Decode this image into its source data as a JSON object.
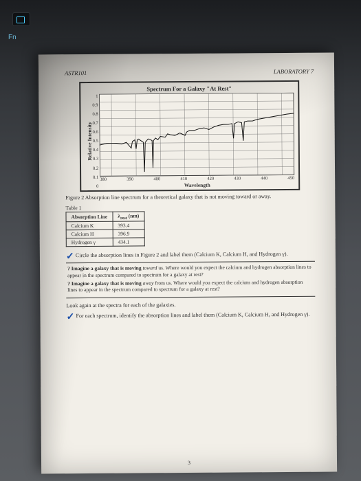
{
  "header": {
    "course": "ASTR101",
    "lab": "LABORATORY 7"
  },
  "chart": {
    "type": "line",
    "title": "Spectrum For a Galaxy \"At Rest\"",
    "xlabel": "Wavelength",
    "ylabel": "Relative Intensity",
    "xlim": [
      375,
      455
    ],
    "ylim": [
      0,
      1
    ],
    "xticks": [
      380,
      390,
      400,
      410,
      420,
      430,
      440,
      450
    ],
    "yticks": [
      0,
      0.1,
      0.2,
      0.3,
      0.4,
      0.5,
      0.6,
      0.7,
      0.8,
      0.9,
      1
    ],
    "grid_color": "#6f6f6f",
    "line_color": "#111111",
    "background_color": "#f2efe8",
    "line_width": 0.9,
    "series": [
      [
        375,
        0.38
      ],
      [
        378,
        0.4
      ],
      [
        380,
        0.4
      ],
      [
        382,
        0.4
      ],
      [
        384,
        0.39
      ],
      [
        386,
        0.41
      ],
      [
        388,
        0.34
      ],
      [
        388.5,
        0.42
      ],
      [
        389.5,
        0.44
      ],
      [
        390,
        0.33
      ],
      [
        390.5,
        0.44
      ],
      [
        391,
        0.45
      ],
      [
        393,
        0.41
      ],
      [
        393.4,
        0.05
      ],
      [
        393.8,
        0.41
      ],
      [
        395,
        0.45
      ],
      [
        396,
        0.44
      ],
      [
        396.6,
        0.43
      ],
      [
        396.9,
        0.1
      ],
      [
        397.2,
        0.43
      ],
      [
        398,
        0.46
      ],
      [
        399,
        0.44
      ],
      [
        400,
        0.48
      ],
      [
        402,
        0.47
      ],
      [
        403,
        0.51
      ],
      [
        404,
        0.5
      ],
      [
        406,
        0.49
      ],
      [
        408,
        0.52
      ],
      [
        409.5,
        0.5
      ],
      [
        410.2,
        0.49
      ],
      [
        410.8,
        0.53
      ],
      [
        412,
        0.55
      ],
      [
        414,
        0.55
      ],
      [
        416,
        0.57
      ],
      [
        418,
        0.58
      ],
      [
        420,
        0.56
      ],
      [
        422,
        0.59
      ],
      [
        424,
        0.61
      ],
      [
        426,
        0.62
      ],
      [
        428,
        0.62
      ],
      [
        429.5,
        0.63
      ],
      [
        430.1,
        0.45
      ],
      [
        430.6,
        0.63
      ],
      [
        432,
        0.65
      ],
      [
        433.5,
        0.64
      ],
      [
        434.1,
        0.42
      ],
      [
        434.6,
        0.65
      ],
      [
        436,
        0.66
      ],
      [
        438,
        0.66
      ],
      [
        440,
        0.68
      ],
      [
        442,
        0.69
      ],
      [
        444,
        0.7
      ],
      [
        446,
        0.71
      ],
      [
        448,
        0.72
      ],
      [
        450,
        0.73
      ],
      [
        452,
        0.74
      ],
      [
        455,
        0.75
      ]
    ]
  },
  "caption": "Figure 2 Absorption line spectrum for a theoretical galaxy that is not moving toward or away.",
  "table": {
    "title": "Table 1",
    "columns": [
      "Absorption Line",
      "λ_rest (nm)"
    ],
    "col2_header_plain": "λrest (nm)",
    "rows": [
      [
        "Calcium K",
        "393.4"
      ],
      [
        "Calcium H",
        "396.9"
      ],
      [
        "Hydrogen γ",
        "434.1"
      ]
    ]
  },
  "task1": "Circle the absorption lines in Figure 2 and label them (Calcium K, Calcium H, and Hydrogen γ).",
  "qbox": {
    "q1_pre": "? Imagine a galaxy that is moving ",
    "q1_em": "toward",
    "q1_post": " us. Where would you expect the calcium and hydrogen absorption lines to appear in the spectrum compared to spectrum for a galaxy at rest?",
    "q2_pre": "? Imagine a galaxy that is moving ",
    "q2_em": "away",
    "q2_post": " from us. Where would you expect the calcium and hydrogen absorption lines to appear in the spectrum compared to spectrum for a galaxy at rest?"
  },
  "para2": "Look again at the spectra for each of the galaxies.",
  "task2": "For each spectrum, identify the absorption lines and label them (Calcium K, Calcium H, and Hydrogen γ).",
  "page_number": "3",
  "fn_label": "Fn"
}
